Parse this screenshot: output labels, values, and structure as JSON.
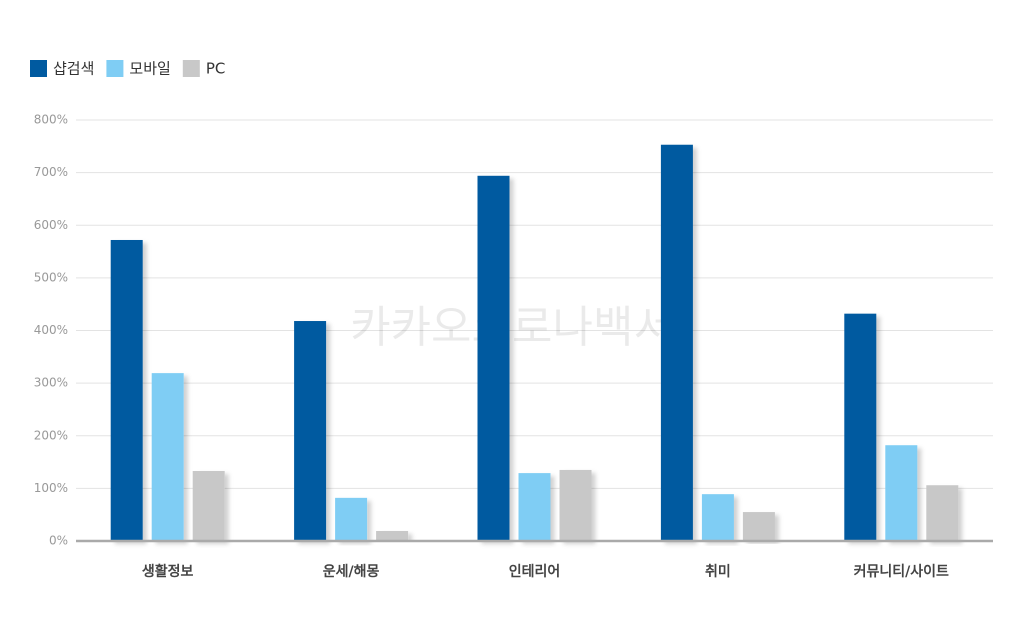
{
  "chart_data": {
    "type": "bar",
    "watermark": "카카오코로나백서",
    "categories": [
      "생활정보",
      "운세/해몽",
      "인테리어",
      "취미",
      "커뮤니티/사이트"
    ],
    "series": [
      {
        "name": "샵검색",
        "color": "#005aa0",
        "values": [
          572,
          418,
          694,
          753,
          432
        ]
      },
      {
        "name": "모바일",
        "color": "#7fcdf4",
        "values": [
          319,
          82,
          129,
          89,
          182
        ]
      },
      {
        "name": "PC",
        "color": "#c8c8c8",
        "values": [
          133,
          19,
          135,
          55,
          106
        ]
      }
    ],
    "ylim": [
      0,
      800
    ],
    "yticks": [
      {
        "value": 0,
        "label": "0%"
      },
      {
        "value": 100,
        "label": "100%"
      },
      {
        "value": 200,
        "label": "200%"
      },
      {
        "value": 300,
        "label": "300%"
      },
      {
        "value": 400,
        "label": "400%"
      },
      {
        "value": 500,
        "label": "500%"
      },
      {
        "value": 600,
        "label": "600%"
      },
      {
        "value": 700,
        "label": "700%"
      },
      {
        "value": 800,
        "label": "800%"
      }
    ],
    "grid": true,
    "legend": "top-left"
  }
}
